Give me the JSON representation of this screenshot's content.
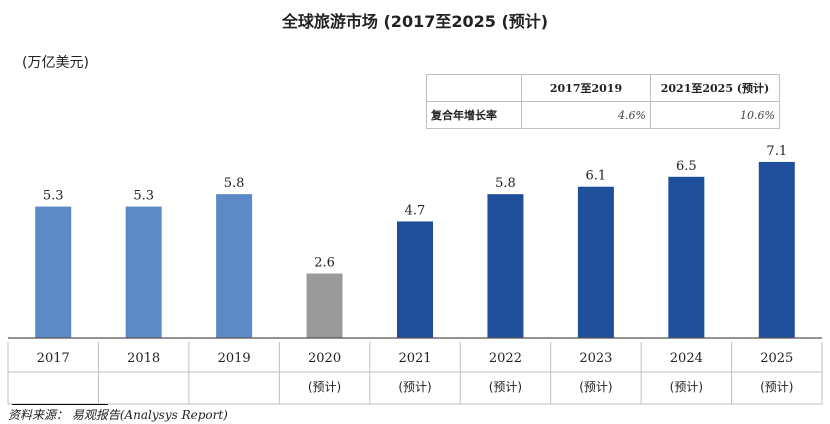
{
  "title": "全球旅游市场 (2017至2025 (预计)",
  "unit_label": "(万亿美元)",
  "cagr_table": {
    "header_1": "2017至2019",
    "header_2": "2021至2025 (预计)",
    "row_label": "复合年增长率",
    "value_1": "4.6%",
    "value_2": "10.6%"
  },
  "forecast_label": "(预计)",
  "source": "资料来源：  易观报告(Analysys Report)",
  "colors": {
    "historical": "#5b8ac6",
    "covid": "#9a9a9a",
    "forecast": "#1f4e9a"
  },
  "chart_data": {
    "type": "bar",
    "title": "全球旅游市场 (2017至2025 (预计)",
    "ylabel": "(万亿美元)",
    "categories": [
      "2017",
      "2018",
      "2019",
      "2020",
      "2021",
      "2022",
      "2023",
      "2024",
      "2025"
    ],
    "values": [
      5.3,
      5.3,
      5.8,
      2.6,
      4.7,
      5.8,
      6.1,
      6.5,
      7.1
    ],
    "forecast": [
      false,
      false,
      false,
      false,
      true,
      true,
      true,
      true,
      true
    ],
    "bar_color_group": [
      "historical",
      "historical",
      "historical",
      "covid",
      "forecast",
      "forecast",
      "forecast",
      "forecast",
      "forecast"
    ],
    "ylim": [
      0,
      7.5
    ],
    "grid": false,
    "legend": "none"
  }
}
